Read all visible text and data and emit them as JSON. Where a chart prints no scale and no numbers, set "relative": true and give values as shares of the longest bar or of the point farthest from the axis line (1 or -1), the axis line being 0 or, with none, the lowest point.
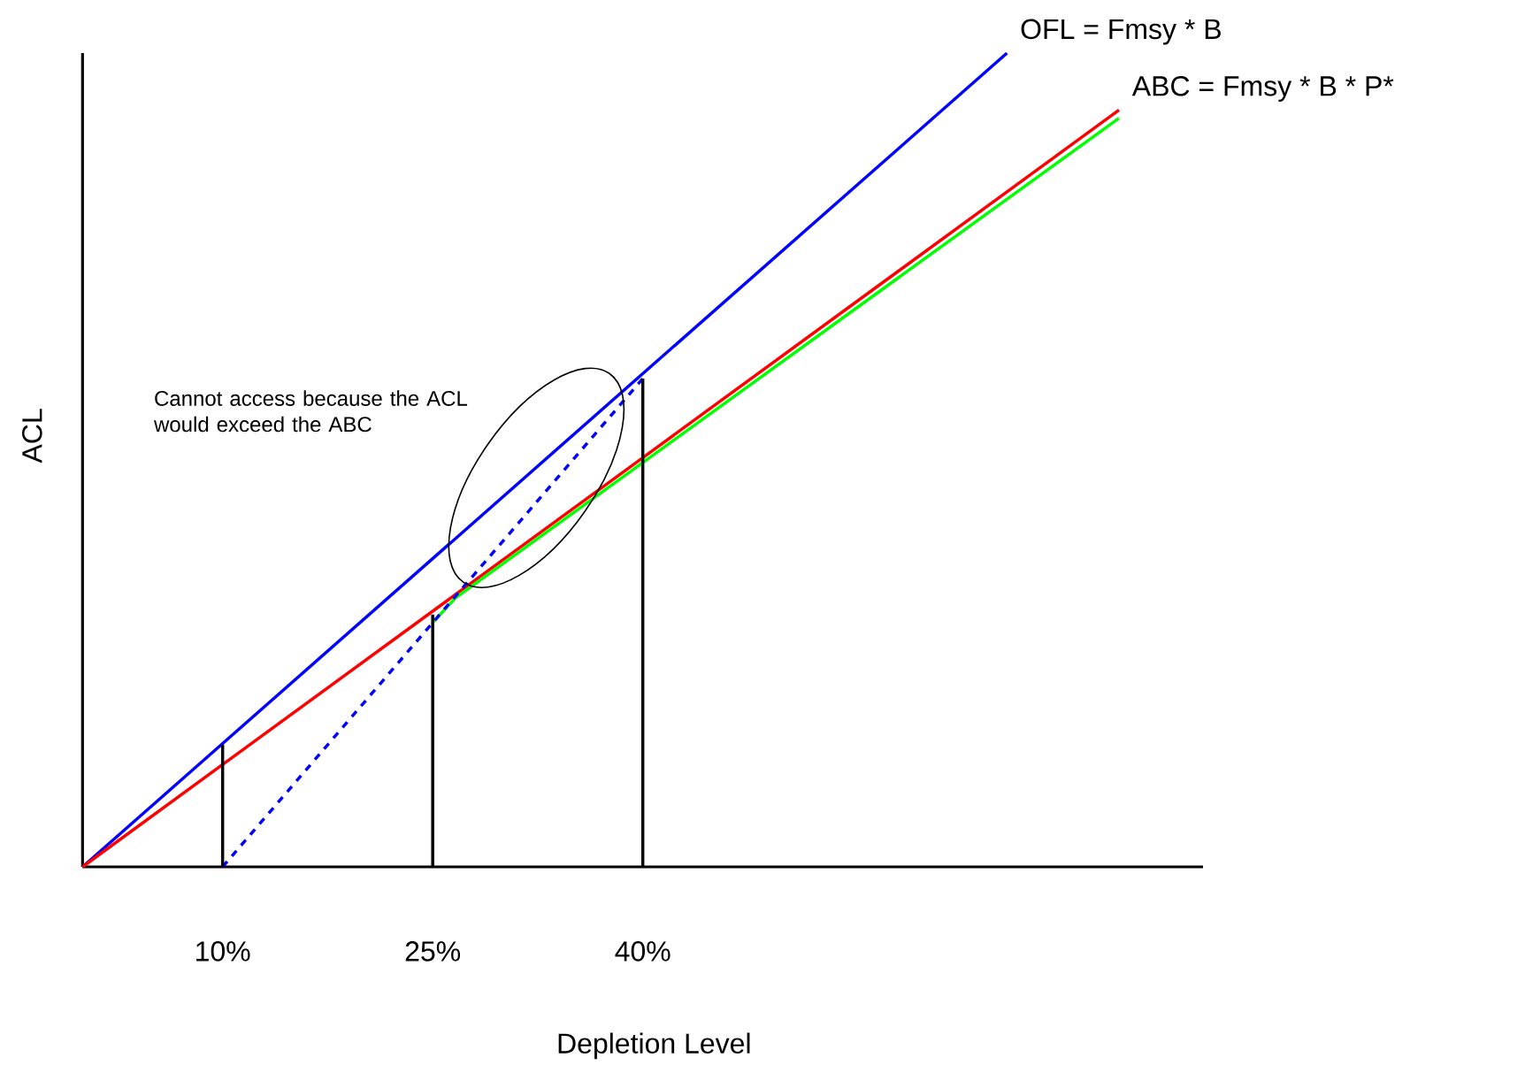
{
  "chart_data": {
    "type": "line",
    "relative": true,
    "xlabel": "Depletion Level",
    "ylabel": "ACL",
    "xlim": [
      0,
      80
    ],
    "xticks": [
      {
        "value": 10,
        "label": "10%"
      },
      {
        "value": 25,
        "label": "25%"
      },
      {
        "value": 40,
        "label": "40%"
      }
    ],
    "tick_labels": "x",
    "grid": false,
    "marker": "none",
    "series": [
      {
        "name": "OFL = Fmsy * B",
        "color": "#0000ff",
        "line_style": "solid",
        "x": [
          0,
          66
        ],
        "values": [
          0,
          1
        ]
      },
      {
        "name": "ABC = Fmsy * B * P*",
        "color": "#ff0000",
        "line_style": "solid",
        "x": [
          0,
          74
        ],
        "values": [
          0,
          0.93
        ]
      },
      {
        "color": "#00ff00",
        "line_style": "solid",
        "x": [
          25,
          26.6,
          74
        ],
        "values": [
          0.3,
          0.33,
          0.92
        ]
      },
      {
        "color": "#0000ff",
        "line_style": "dashed",
        "x": [
          10,
          40
        ],
        "values": [
          0,
          0.6
        ]
      },
      {
        "color": "#000000",
        "line_style": "solid",
        "x": [
          10,
          10
        ],
        "values": [
          0,
          0.15
        ]
      },
      {
        "color": "#000000",
        "line_style": "solid",
        "x": [
          25,
          25
        ],
        "values": [
          0,
          0.31
        ]
      },
      {
        "color": "#000000",
        "line_style": "solid",
        "x": [
          40,
          40
        ],
        "values": [
          0,
          0.6
        ]
      }
    ],
    "annotations": [
      "Cannot access because the ACL would exceed the ABC"
    ]
  }
}
